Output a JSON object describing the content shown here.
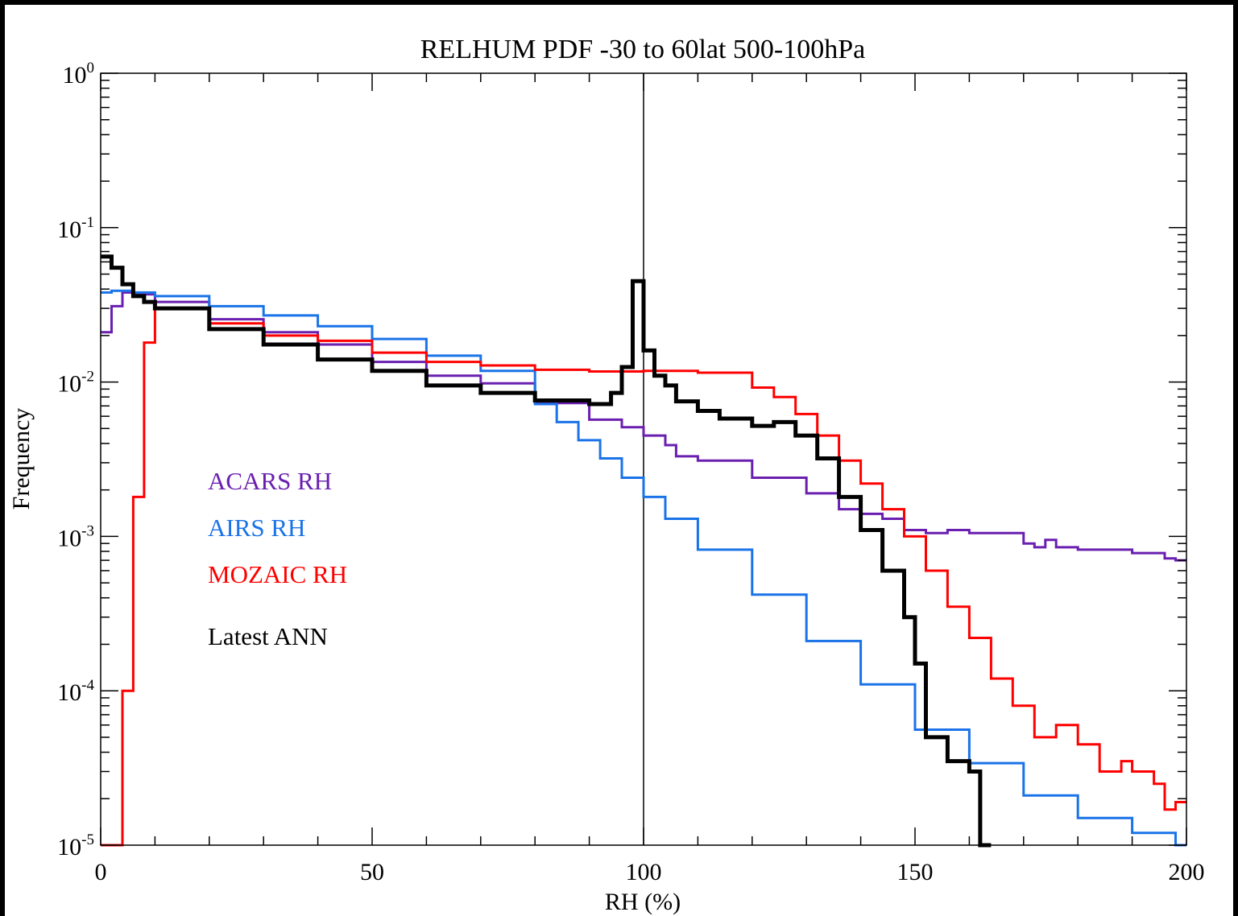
{
  "chart_data": {
    "type": "line",
    "title": "RELHUM PDF -30 to 60lat 500-100hPa",
    "xlabel": "RH (%)",
    "ylabel": "Frequency",
    "xlim": [
      0,
      200
    ],
    "ylim": [
      1e-05,
      1
    ],
    "yscale": "log",
    "x_ticks": [
      0,
      50,
      100,
      150,
      200
    ],
    "y_ticks": [
      {
        "value": 1,
        "base": "10",
        "exp": "0"
      },
      {
        "value": 0.1,
        "base": "10",
        "exp": "-1"
      },
      {
        "value": 0.01,
        "base": "10",
        "exp": "-2"
      },
      {
        "value": 0.001,
        "base": "10",
        "exp": "-3"
      },
      {
        "value": 0.0001,
        "base": "10",
        "exp": "-4"
      },
      {
        "value": 1e-05,
        "base": "10",
        "exp": "-5"
      }
    ],
    "reference_line_x": 100,
    "legend_placement": "left-middle",
    "bin_width": 2,
    "series": [
      {
        "name": "ACARS RH",
        "color": "#6a1fb0",
        "stroke_width": 3,
        "x": [
          0,
          2,
          4,
          6,
          10,
          20,
          30,
          40,
          50,
          60,
          70,
          80,
          90,
          96,
          100,
          104,
          106,
          110,
          120,
          130,
          136,
          140,
          144,
          148,
          150,
          152,
          156,
          160,
          170,
          172,
          174,
          176,
          180,
          190,
          196,
          198,
          200
        ],
        "values": [
          0.021,
          0.031,
          0.038,
          0.037,
          0.033,
          0.0255,
          0.021,
          0.0175,
          0.0135,
          0.011,
          0.0098,
          0.0073,
          0.0057,
          0.0051,
          0.0045,
          0.0039,
          0.0033,
          0.0031,
          0.0024,
          0.0019,
          0.0015,
          0.0014,
          0.0013,
          0.0011,
          0.0011,
          0.00105,
          0.0011,
          0.00105,
          0.0009,
          0.00085,
          0.00095,
          0.00085,
          0.00082,
          0.00078,
          0.00072,
          0.0007,
          0.0007
        ]
      },
      {
        "name": "AIRS RH",
        "color": "#1a73e8",
        "stroke_width": 3,
        "x": [
          0,
          2,
          4,
          6,
          10,
          20,
          30,
          40,
          50,
          60,
          70,
          80,
          84,
          88,
          92,
          96,
          100,
          104,
          110,
          120,
          130,
          140,
          150,
          160,
          170,
          180,
          190,
          198,
          200
        ],
        "values": [
          0.038,
          0.039,
          0.039,
          0.038,
          0.036,
          0.031,
          0.027,
          0.023,
          0.019,
          0.0148,
          0.0118,
          0.0072,
          0.0055,
          0.0042,
          0.0032,
          0.0024,
          0.0018,
          0.0013,
          0.00082,
          0.00042,
          0.00021,
          0.00011,
          5.6e-05,
          3.4e-05,
          2.1e-05,
          1.5e-05,
          1.2e-05,
          1e-05,
          1e-05
        ]
      },
      {
        "name": "MOZAIC RH",
        "color": "#ff0000",
        "stroke_width": 3,
        "x": [
          0,
          2,
          4,
          6,
          8,
          10,
          20,
          30,
          40,
          50,
          60,
          70,
          80,
          90,
          100,
          110,
          120,
          124,
          128,
          132,
          136,
          140,
          144,
          148,
          152,
          156,
          160,
          164,
          168,
          172,
          176,
          180,
          184,
          188,
          190,
          194,
          196,
          198,
          200
        ],
        "values": [
          1e-05,
          1e-05,
          0.0001,
          0.0018,
          0.018,
          0.03,
          0.024,
          0.02,
          0.0185,
          0.0155,
          0.0135,
          0.0128,
          0.012,
          0.0117,
          0.0118,
          0.0115,
          0.0092,
          0.008,
          0.0062,
          0.0045,
          0.0031,
          0.0022,
          0.0015,
          0.001,
          0.0006,
          0.00035,
          0.00022,
          0.00012,
          8e-05,
          5e-05,
          6e-05,
          4.5e-05,
          3e-05,
          3.5e-05,
          3e-05,
          2.5e-05,
          1.7e-05,
          1.9e-05,
          1.9e-05
        ]
      },
      {
        "name": "Latest ANN",
        "color": "#000000",
        "stroke_width": 5,
        "x": [
          0,
          2,
          4,
          6,
          8,
          10,
          20,
          30,
          40,
          50,
          60,
          70,
          80,
          90,
          94,
          96,
          98,
          100,
          102,
          104,
          106,
          110,
          114,
          120,
          124,
          128,
          132,
          136,
          140,
          144,
          148,
          150,
          152,
          156,
          160,
          162
        ],
        "values": [
          0.065,
          0.055,
          0.043,
          0.036,
          0.033,
          0.03,
          0.022,
          0.0175,
          0.014,
          0.0118,
          0.0095,
          0.0085,
          0.0076,
          0.0072,
          0.0085,
          0.0125,
          0.045,
          0.016,
          0.011,
          0.0095,
          0.0075,
          0.0065,
          0.0058,
          0.0052,
          0.0055,
          0.0045,
          0.0032,
          0.0018,
          0.0011,
          0.0006,
          0.0003,
          0.00015,
          5e-05,
          3.5e-05,
          3e-05,
          1e-05
        ]
      }
    ]
  }
}
